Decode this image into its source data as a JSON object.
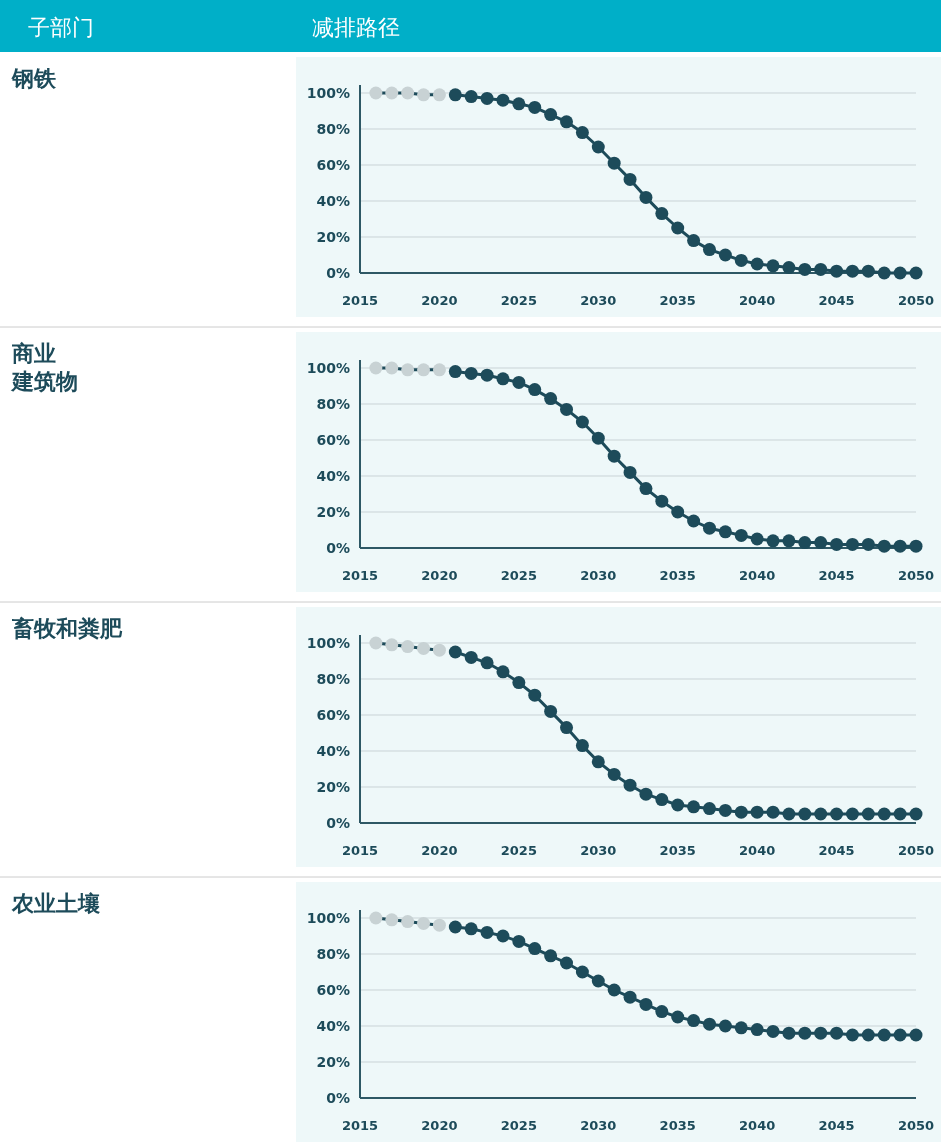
{
  "chart_data": [
    {
      "type": "other",
      "annotations": [
        "子部门",
        "减排路径"
      ]
    },
    {
      "type": "other",
      "title": "钢铁"
    },
    {
      "type": "line",
      "xlim": [
        2015,
        2050
      ],
      "xticks": [
        2015,
        2020,
        2025,
        2030,
        2035,
        2040,
        2045,
        2050
      ],
      "ylim": [
        0,
        100
      ],
      "yticks": [
        {
          "value": 0,
          "label": "0%"
        },
        {
          "value": 20,
          "label": "20%"
        },
        {
          "value": 40,
          "label": "40%"
        },
        {
          "value": 60,
          "label": "60%"
        },
        {
          "value": 80,
          "label": "80%"
        },
        {
          "value": 100,
          "label": "100%"
        }
      ],
      "grid": "y",
      "marker": "circle",
      "line_style": "solid",
      "series": [
        {
          "color": "#c8d2d4",
          "x": [
            2016,
            2017,
            2018,
            2019,
            2020
          ],
          "values": [
            100,
            100,
            100,
            99,
            99
          ]
        },
        {
          "color": "#1d4b5a",
          "x": [
            2021,
            2022,
            2023,
            2024,
            2025,
            2026,
            2027,
            2028,
            2029,
            2030,
            2031,
            2032,
            2033,
            2034,
            2035,
            2036,
            2037,
            2038,
            2039,
            2040,
            2041,
            2042,
            2043,
            2044,
            2045,
            2046,
            2047,
            2048,
            2049,
            2050
          ],
          "values": [
            99,
            98,
            97,
            96,
            94,
            92,
            88,
            84,
            78,
            70,
            61,
            52,
            42,
            33,
            25,
            18,
            13,
            10,
            7,
            5,
            4,
            3,
            2,
            2,
            1,
            1,
            1,
            0,
            0,
            0
          ]
        }
      ]
    },
    {
      "type": "other",
      "title": "商业",
      "subtitle": "建筑物"
    },
    {
      "type": "line",
      "xlim": [
        2015,
        2050
      ],
      "xticks": [
        2015,
        2020,
        2025,
        2030,
        2035,
        2040,
        2045,
        2050
      ],
      "ylim": [
        0,
        100
      ],
      "yticks": [
        {
          "value": 0,
          "label": "0%"
        },
        {
          "value": 20,
          "label": "20%"
        },
        {
          "value": 40,
          "label": "40%"
        },
        {
          "value": 60,
          "label": "60%"
        },
        {
          "value": 80,
          "label": "80%"
        },
        {
          "value": 100,
          "label": "100%"
        }
      ],
      "grid": "y",
      "marker": "circle",
      "line_style": "solid",
      "series": [
        {
          "color": "#c8d2d4",
          "x": [
            2016,
            2017,
            2018,
            2019,
            2020
          ],
          "values": [
            100,
            100,
            99,
            99,
            99
          ]
        },
        {
          "color": "#1d4b5a",
          "x": [
            2021,
            2022,
            2023,
            2024,
            2025,
            2026,
            2027,
            2028,
            2029,
            2030,
            2031,
            2032,
            2033,
            2034,
            2035,
            2036,
            2037,
            2038,
            2039,
            2040,
            2041,
            2042,
            2043,
            2044,
            2045,
            2046,
            2047,
            2048,
            2049,
            2050
          ],
          "values": [
            98,
            97,
            96,
            94,
            92,
            88,
            83,
            77,
            70,
            61,
            51,
            42,
            33,
            26,
            20,
            15,
            11,
            9,
            7,
            5,
            4,
            4,
            3,
            3,
            2,
            2,
            2,
            1,
            1,
            1
          ]
        }
      ]
    },
    {
      "type": "other",
      "title": "畜牧和粪肥"
    },
    {
      "type": "line",
      "xlim": [
        2015,
        2050
      ],
      "xticks": [
        2015,
        2020,
        2025,
        2030,
        2035,
        2040,
        2045,
        2050
      ],
      "ylim": [
        0,
        100
      ],
      "yticks": [
        {
          "value": 0,
          "label": "0%"
        },
        {
          "value": 20,
          "label": "20%"
        },
        {
          "value": 40,
          "label": "40%"
        },
        {
          "value": 60,
          "label": "60%"
        },
        {
          "value": 80,
          "label": "80%"
        },
        {
          "value": 100,
          "label": "100%"
        }
      ],
      "grid": "y",
      "marker": "circle",
      "line_style": "solid",
      "series": [
        {
          "color": "#c8d2d4",
          "x": [
            2016,
            2017,
            2018,
            2019,
            2020
          ],
          "values": [
            100,
            99,
            98,
            97,
            96
          ]
        },
        {
          "color": "#1d4b5a",
          "x": [
            2021,
            2022,
            2023,
            2024,
            2025,
            2026,
            2027,
            2028,
            2029,
            2030,
            2031,
            2032,
            2033,
            2034,
            2035,
            2036,
            2037,
            2038,
            2039,
            2040,
            2041,
            2042,
            2043,
            2044,
            2045,
            2046,
            2047,
            2048,
            2049,
            2050
          ],
          "values": [
            95,
            92,
            89,
            84,
            78,
            71,
            62,
            53,
            43,
            34,
            27,
            21,
            16,
            13,
            10,
            9,
            8,
            7,
            6,
            6,
            6,
            5,
            5,
            5,
            5,
            5,
            5,
            5,
            5,
            5
          ]
        }
      ]
    },
    {
      "type": "other",
      "title": "农业土壤"
    },
    {
      "type": "line",
      "xlim": [
        2015,
        2050
      ],
      "xticks": [
        2015,
        2020,
        2025,
        2030,
        2035,
        2040,
        2045,
        2050
      ],
      "ylim": [
        0,
        100
      ],
      "yticks": [
        {
          "value": 0,
          "label": "0%"
        },
        {
          "value": 20,
          "label": "20%"
        },
        {
          "value": 40,
          "label": "40%"
        },
        {
          "value": 60,
          "label": "60%"
        },
        {
          "value": 80,
          "label": "80%"
        },
        {
          "value": 100,
          "label": "100%"
        }
      ],
      "grid": "y",
      "marker": "circle",
      "line_style": "solid",
      "series": [
        {
          "color": "#c8d2d4",
          "x": [
            2016,
            2017,
            2018,
            2019,
            2020
          ],
          "values": [
            100,
            99,
            98,
            97,
            96
          ]
        },
        {
          "color": "#1d4b5a",
          "x": [
            2021,
            2022,
            2023,
            2024,
            2025,
            2026,
            2027,
            2028,
            2029,
            2030,
            2031,
            2032,
            2033,
            2034,
            2035,
            2036,
            2037,
            2038,
            2039,
            2040,
            2041,
            2042,
            2043,
            2044,
            2045,
            2046,
            2047,
            2048,
            2049,
            2050
          ],
          "values": [
            95,
            94,
            92,
            90,
            87,
            83,
            79,
            75,
            70,
            65,
            60,
            56,
            52,
            48,
            45,
            43,
            41,
            40,
            39,
            38,
            37,
            36,
            36,
            36,
            36,
            35,
            35,
            35,
            35,
            35
          ]
        }
      ]
    }
  ]
}
